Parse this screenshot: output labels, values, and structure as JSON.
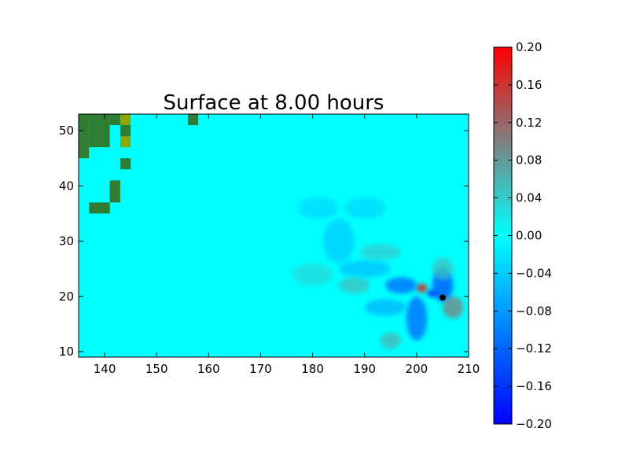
{
  "chart_data": {
    "type": "heatmap",
    "title": "Surface at 8.00 hours",
    "xlabel": "",
    "ylabel": "",
    "xlim": [
      135,
      210
    ],
    "ylim": [
      9,
      53
    ],
    "xticks": [
      140,
      150,
      160,
      170,
      180,
      190,
      200,
      210
    ],
    "yticks": [
      10,
      20,
      30,
      40,
      50
    ],
    "colorbar": {
      "min": -0.2,
      "max": 0.2,
      "ticks": [
        "0.20",
        "0.16",
        "0.12",
        "0.08",
        "0.04",
        "0.00",
        "−0.04",
        "−0.08",
        "−0.12",
        "−0.16",
        "−0.20"
      ],
      "colors": [
        "#0000ff",
        "#00ffff",
        "#ff0000"
      ]
    },
    "background_value": 0.0,
    "land_cells": [
      {
        "x": 136,
        "y": 52,
        "level": "low"
      },
      {
        "x": 138,
        "y": 52,
        "level": "low"
      },
      {
        "x": 140,
        "y": 52,
        "level": "low"
      },
      {
        "x": 142,
        "y": 52,
        "level": "low"
      },
      {
        "x": 144,
        "y": 52,
        "level": "high"
      },
      {
        "x": 136,
        "y": 50,
        "level": "low"
      },
      {
        "x": 138,
        "y": 50,
        "level": "low"
      },
      {
        "x": 140,
        "y": 50,
        "level": "low"
      },
      {
        "x": 144,
        "y": 50,
        "level": "low"
      },
      {
        "x": 136,
        "y": 48,
        "level": "low"
      },
      {
        "x": 138,
        "y": 48,
        "level": "low"
      },
      {
        "x": 140,
        "y": 48,
        "level": "low"
      },
      {
        "x": 144,
        "y": 48,
        "level": "high"
      },
      {
        "x": 136,
        "y": 46,
        "level": "low"
      },
      {
        "x": 144,
        "y": 44,
        "level": "low"
      },
      {
        "x": 142,
        "y": 40,
        "level": "low"
      },
      {
        "x": 142,
        "y": 38,
        "level": "low"
      },
      {
        "x": 138,
        "y": 36,
        "level": "low"
      },
      {
        "x": 140,
        "y": 36,
        "level": "low"
      },
      {
        "x": 157,
        "y": 52,
        "level": "low"
      }
    ],
    "land_colors": {
      "low": "#2e7d32",
      "high": "#8aa800"
    },
    "wave_features": [
      {
        "x": 201,
        "y": 21.5,
        "value": 0.2,
        "rx": 1.0,
        "ry": 0.8
      },
      {
        "x": 203,
        "y": 20.5,
        "value": -0.2,
        "rx": 1.0,
        "ry": 0.6
      },
      {
        "x": 197,
        "y": 22,
        "value": -0.12,
        "rx": 3,
        "ry": 1.5
      },
      {
        "x": 205,
        "y": 22,
        "value": -0.14,
        "rx": 2,
        "ry": 3
      },
      {
        "x": 200,
        "y": 16,
        "value": -0.12,
        "rx": 2,
        "ry": 4
      },
      {
        "x": 207,
        "y": 18,
        "value": 0.1,
        "rx": 2,
        "ry": 2
      },
      {
        "x": 194,
        "y": 18,
        "value": -0.06,
        "rx": 4,
        "ry": 1.5
      },
      {
        "x": 190,
        "y": 25,
        "value": -0.05,
        "rx": 5,
        "ry": 1.5
      },
      {
        "x": 185,
        "y": 30,
        "value": -0.04,
        "rx": 3,
        "ry": 4
      },
      {
        "x": 195,
        "y": 12,
        "value": 0.06,
        "rx": 2,
        "ry": 1.5
      },
      {
        "x": 188,
        "y": 22,
        "value": 0.05,
        "rx": 3,
        "ry": 1.5
      },
      {
        "x": 193,
        "y": 28,
        "value": 0.04,
        "rx": 4,
        "ry": 1.5
      },
      {
        "x": 180,
        "y": 24,
        "value": 0.03,
        "rx": 4,
        "ry": 2
      },
      {
        "x": 181,
        "y": 36,
        "value": -0.03,
        "rx": 4,
        "ry": 2
      },
      {
        "x": 190,
        "y": 36,
        "value": -0.03,
        "rx": 4,
        "ry": 2
      },
      {
        "x": 205,
        "y": 25,
        "value": 0.05,
        "rx": 2,
        "ry": 2
      }
    ],
    "marker": {
      "x": 205,
      "y": 19.8
    }
  }
}
